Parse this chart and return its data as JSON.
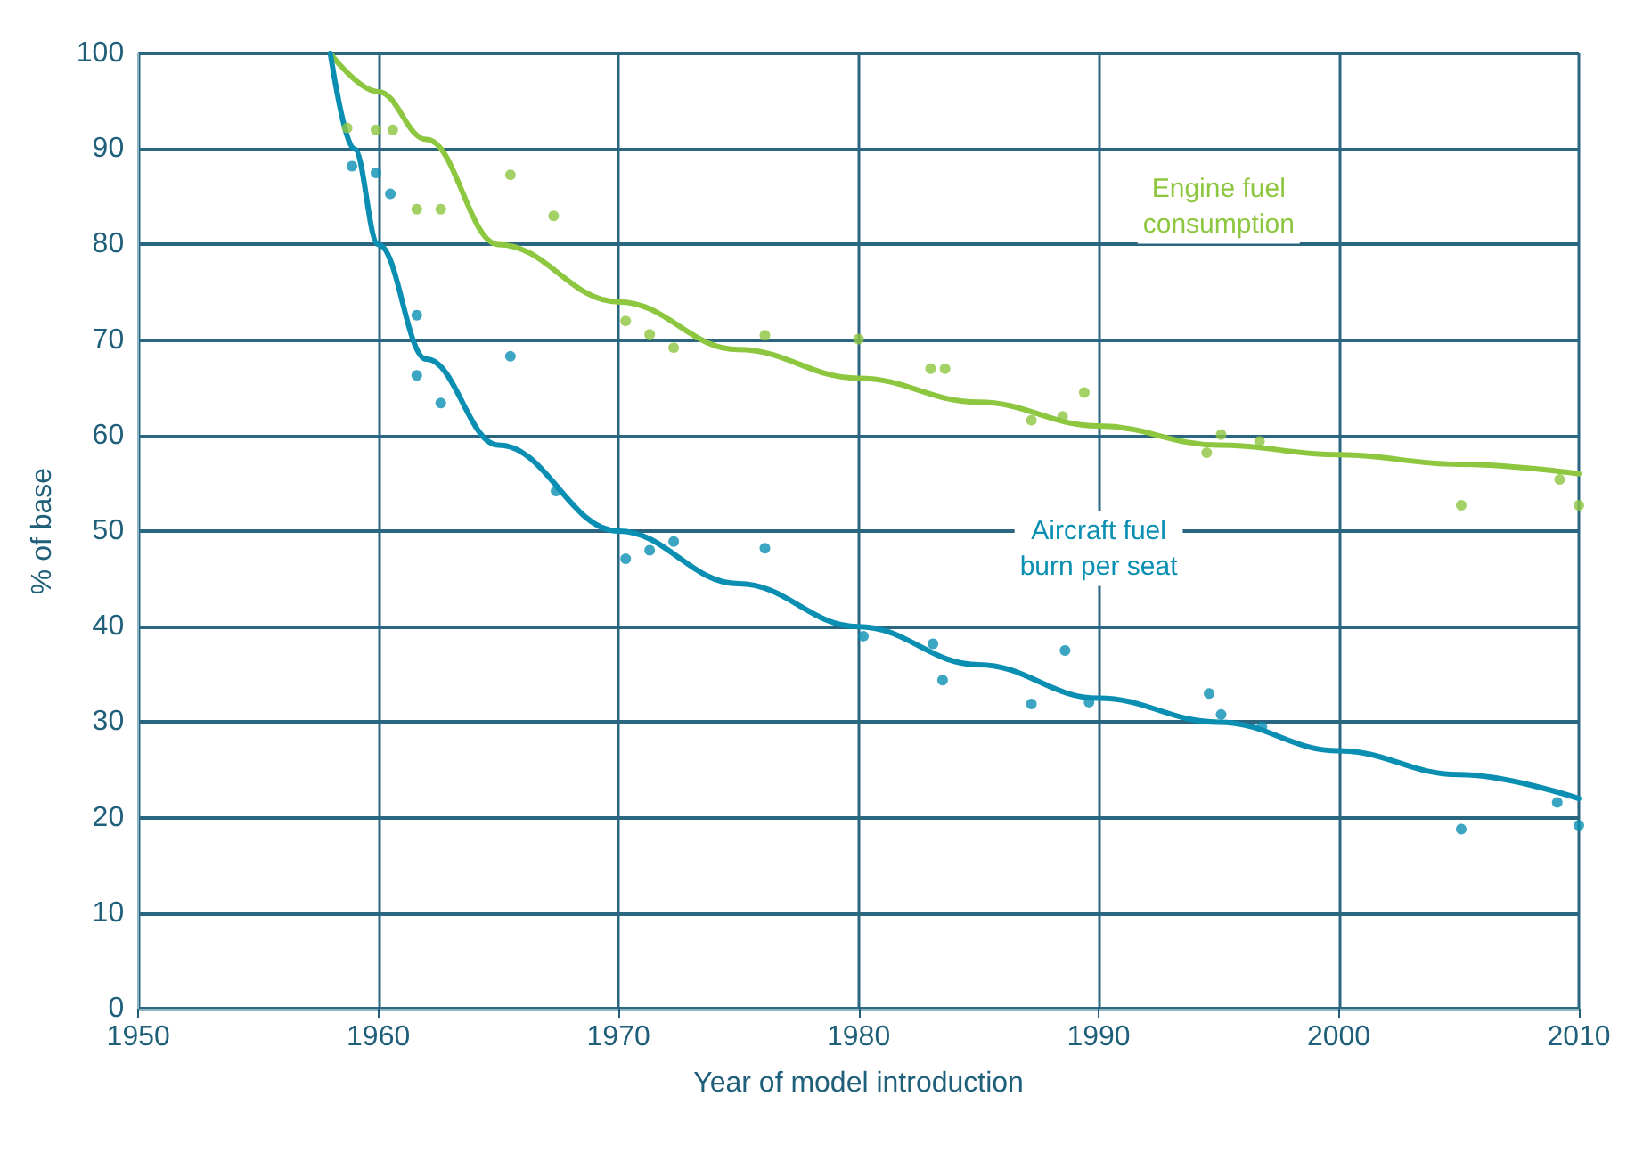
{
  "chart_data": {
    "type": "scatter",
    "xlabel": "Year of model introduction",
    "ylabel": "% of base",
    "xlim": [
      1950,
      2010
    ],
    "xticks": [
      1950,
      1960,
      1970,
      1980,
      1990,
      2000,
      2010
    ],
    "ylim": [
      0,
      100
    ],
    "yticks": [
      0,
      10,
      20,
      30,
      40,
      50,
      60,
      70,
      80,
      90,
      100
    ],
    "grid": true,
    "legend": false,
    "marker": "circle",
    "series": [
      {
        "color": "#8dc63f",
        "x": [
          1958.7,
          1959.9,
          1960.6,
          1961.6,
          1962.6,
          1965.5,
          1967.3,
          1970.3,
          1971.3,
          1972.3,
          1976.1,
          1980.0,
          1983.0,
          1983.6,
          1987.2,
          1988.5,
          1989.4,
          1994.5,
          1995.1,
          1996.7,
          2005.1,
          2009.2,
          2010.0
        ],
        "values": [
          92.2,
          92,
          92,
          83.7,
          83.7,
          87.3,
          83,
          72,
          70.6,
          69.2,
          70.5,
          70.1,
          67,
          67,
          61.6,
          62,
          64.5,
          58.2,
          60.1,
          59.4,
          52.7,
          55.4,
          52.7
        ]
      },
      {
        "color": "#0a8fb3",
        "x": [
          1958.9,
          1959.9,
          1960.5,
          1961.6,
          1961.6,
          1962.6,
          1965.5,
          1967.4,
          1970.3,
          1971.3,
          1972.3,
          1976.1,
          1980.2,
          1983.1,
          1983.5,
          1987.2,
          1988.6,
          1989.6,
          1994.6,
          1995.1,
          1996.8,
          2005.1,
          2009.1,
          2010.0
        ],
        "values": [
          88.2,
          87.5,
          85.3,
          72.6,
          66.3,
          63.4,
          68.3,
          54.2,
          47.1,
          48,
          48.9,
          48.2,
          39,
          38.2,
          34.4,
          31.9,
          37.5,
          32.1,
          33,
          30.8,
          29.5,
          18.8,
          21.6,
          19.2
        ]
      },
      {
        "type": "line",
        "name": "Engine fuel\nconsumption",
        "color": "#8dc63f",
        "marker": "none",
        "line_style": "solid",
        "x": [
          1958,
          1960,
          1962,
          1965,
          1970,
          1975,
          1980,
          1985,
          1990,
          1995,
          2000,
          2005,
          2010
        ],
        "values": [
          100,
          96,
          91,
          80,
          74,
          69,
          66,
          63.5,
          61,
          59,
          58,
          57,
          56
        ]
      },
      {
        "type": "line",
        "name": "Aircraft fuel\nburn per seat",
        "color": "#0a8fb3",
        "marker": "none",
        "line_style": "solid",
        "x": [
          1958,
          1959,
          1960,
          1962,
          1965,
          1970,
          1975,
          1980,
          1985,
          1990,
          1995,
          2000,
          2005,
          2010
        ],
        "values": [
          100,
          90,
          80,
          68,
          59,
          50,
          44.5,
          40,
          36,
          32.5,
          30,
          27,
          24.5,
          22
        ]
      }
    ]
  }
}
